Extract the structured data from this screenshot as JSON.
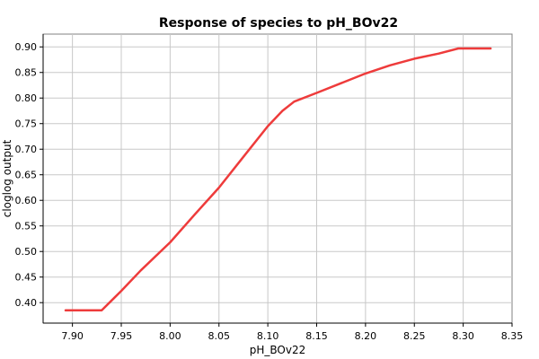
{
  "chart_data": {
    "type": "line",
    "title": "Response of species to pH_BOv22",
    "xlabel": "pH_BOv22",
    "ylabel": "cloglog output",
    "xlim": [
      7.87,
      8.35
    ],
    "ylim": [
      0.36,
      0.925
    ],
    "xticks": [
      7.9,
      7.95,
      8.0,
      8.05,
      8.1,
      8.15,
      8.2,
      8.25,
      8.3,
      8.35
    ],
    "yticks": [
      0.4,
      0.45,
      0.5,
      0.55,
      0.6,
      0.65,
      0.7,
      0.75,
      0.8,
      0.85,
      0.9
    ],
    "xtick_labels": [
      "7.90",
      "7.95",
      "8.00",
      "8.05",
      "8.10",
      "8.15",
      "8.20",
      "8.25",
      "8.30",
      "8.35"
    ],
    "ytick_labels": [
      "0.40",
      "0.45",
      "0.50",
      "0.55",
      "0.60",
      "0.65",
      "0.70",
      "0.75",
      "0.80",
      "0.85",
      "0.90"
    ],
    "grid": true,
    "line_color": "#ee3b3b",
    "series": [
      {
        "x": [
          7.893,
          7.93,
          7.95,
          7.97,
          8.0,
          8.025,
          8.05,
          8.075,
          8.1,
          8.115,
          8.127,
          8.15,
          8.175,
          8.2,
          8.225,
          8.25,
          8.275,
          8.295,
          8.328
        ],
        "y": [
          0.385,
          0.385,
          0.423,
          0.463,
          0.518,
          0.572,
          0.625,
          0.685,
          0.745,
          0.775,
          0.793,
          0.81,
          0.829,
          0.848,
          0.864,
          0.877,
          0.887,
          0.897,
          0.897
        ]
      }
    ]
  }
}
